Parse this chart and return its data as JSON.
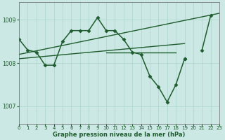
{
  "xlabel": "Graphe pression niveau de la mer (hPa)",
  "xlim": [
    0,
    23
  ],
  "ylim": [
    1006.6,
    1009.4
  ],
  "yticks": [
    1007,
    1008,
    1009
  ],
  "xticks": [
    0,
    1,
    2,
    3,
    4,
    5,
    6,
    7,
    8,
    9,
    10,
    11,
    12,
    13,
    14,
    15,
    16,
    17,
    18,
    19,
    20,
    21,
    22,
    23
  ],
  "bg_color": "#cce8e4",
  "line_color": "#1e5c2e",
  "grid_color": "#aad4cc",
  "series": [
    {
      "x": [
        0,
        1,
        2,
        3,
        4,
        5,
        6,
        7,
        8,
        9,
        10,
        11,
        12,
        13,
        14,
        15,
        16,
        17,
        18,
        19,
        20,
        21,
        22,
        23
      ],
      "y": [
        1008.55,
        1008.3,
        1008.25,
        1007.95,
        1007.95,
        1008.5,
        1008.75,
        1008.75,
        1008.75,
        1009.05,
        1008.75,
        1008.75,
        1008.55,
        1008.25,
        1008.2,
        1007.7,
        1007.45,
        1007.1,
        1007.5,
        1008.1,
        null,
        null,
        null,
        null
      ],
      "marker": "D",
      "markersize": 2.5,
      "linewidth": 1.1
    },
    {
      "x": [
        19,
        20,
        21,
        22,
        23
      ],
      "y": [
        1008.1,
        null,
        1008.3,
        1009.1,
        null
      ],
      "marker": "D",
      "markersize": 2.5,
      "linewidth": 1.1
    },
    {
      "x": [
        0,
        23
      ],
      "y": [
        1008.2,
        1009.15
      ],
      "marker": null,
      "markersize": 0,
      "linewidth": 1.0
    },
    {
      "x": [
        0,
        19
      ],
      "y": [
        1008.1,
        1008.45
      ],
      "marker": null,
      "markersize": 0,
      "linewidth": 1.0
    },
    {
      "x": [
        10,
        18
      ],
      "y": [
        1008.25,
        1008.25
      ],
      "marker": null,
      "markersize": 0,
      "linewidth": 1.0
    }
  ]
}
